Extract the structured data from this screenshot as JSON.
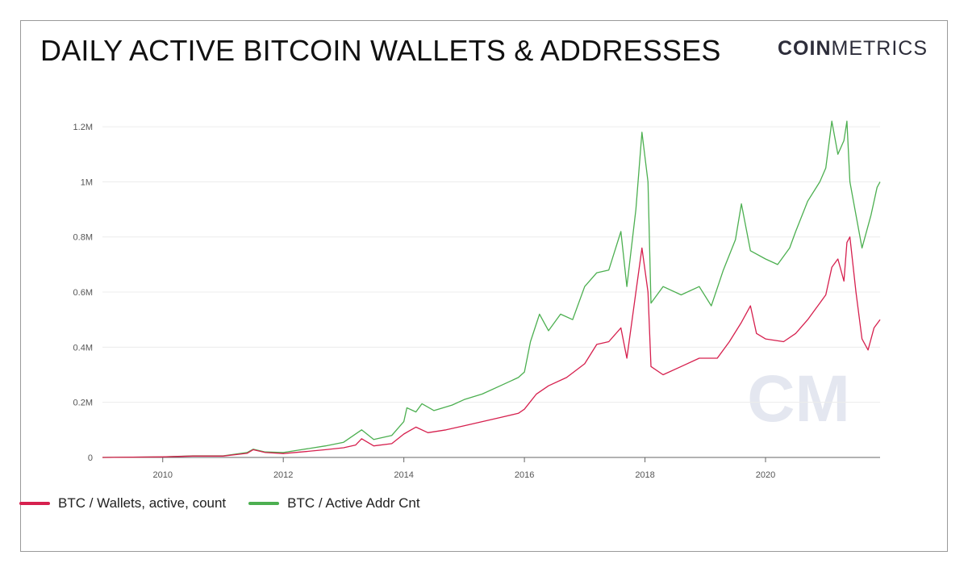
{
  "header": {
    "title": "DAILY ACTIVE BITCOIN WALLETS & ADDRESSES",
    "brand_bold": "COIN",
    "brand_light": "METRICS"
  },
  "watermark": {
    "text": "CM"
  },
  "colors": {
    "wallets": "#d6204e",
    "addresses": "#4caf50",
    "grid": "#ececec",
    "axis": "#555555"
  },
  "chart_data": {
    "type": "line",
    "title": "DAILY ACTIVE BITCOIN WALLETS & ADDRESSES",
    "xlabel": "",
    "ylabel": "",
    "xlim": [
      2009.0,
      2021.9
    ],
    "ylim": [
      0,
      1250000
    ],
    "x_ticks": [
      2010,
      2012,
      2014,
      2016,
      2018,
      2020
    ],
    "x_tick_labels": [
      "2010",
      "2012",
      "2014",
      "2016",
      "2018",
      "2020"
    ],
    "y_ticks": [
      0,
      200000,
      400000,
      600000,
      800000,
      1000000,
      1200000
    ],
    "y_tick_labels": [
      "0",
      "0.2M",
      "0.4M",
      "0.6M",
      "0.8M",
      "1M",
      "1.2M"
    ],
    "grid": true,
    "legend_position": "bottom-left",
    "series": [
      {
        "name": "BTC / Wallets, active, count",
        "color": "#d6204e",
        "points": [
          [
            2009.0,
            0
          ],
          [
            2010.0,
            2000
          ],
          [
            2010.5,
            5000
          ],
          [
            2011.0,
            5000
          ],
          [
            2011.4,
            15000
          ],
          [
            2011.5,
            28000
          ],
          [
            2011.7,
            18000
          ],
          [
            2012.0,
            14000
          ],
          [
            2012.3,
            20000
          ],
          [
            2012.7,
            28000
          ],
          [
            2013.0,
            35000
          ],
          [
            2013.2,
            45000
          ],
          [
            2013.3,
            68000
          ],
          [
            2013.5,
            42000
          ],
          [
            2013.8,
            50000
          ],
          [
            2014.0,
            85000
          ],
          [
            2014.2,
            110000
          ],
          [
            2014.4,
            90000
          ],
          [
            2014.7,
            100000
          ],
          [
            2015.0,
            115000
          ],
          [
            2015.3,
            130000
          ],
          [
            2015.6,
            145000
          ],
          [
            2015.9,
            160000
          ],
          [
            2016.0,
            175000
          ],
          [
            2016.2,
            230000
          ],
          [
            2016.4,
            260000
          ],
          [
            2016.7,
            290000
          ],
          [
            2017.0,
            340000
          ],
          [
            2017.2,
            410000
          ],
          [
            2017.4,
            420000
          ],
          [
            2017.6,
            470000
          ],
          [
            2017.7,
            360000
          ],
          [
            2017.85,
            600000
          ],
          [
            2017.95,
            760000
          ],
          [
            2018.05,
            600000
          ],
          [
            2018.1,
            330000
          ],
          [
            2018.3,
            300000
          ],
          [
            2018.6,
            330000
          ],
          [
            2018.9,
            360000
          ],
          [
            2019.2,
            360000
          ],
          [
            2019.4,
            420000
          ],
          [
            2019.6,
            490000
          ],
          [
            2019.75,
            550000
          ],
          [
            2019.85,
            450000
          ],
          [
            2020.0,
            430000
          ],
          [
            2020.3,
            420000
          ],
          [
            2020.5,
            450000
          ],
          [
            2020.7,
            500000
          ],
          [
            2020.9,
            560000
          ],
          [
            2021.0,
            590000
          ],
          [
            2021.1,
            690000
          ],
          [
            2021.2,
            720000
          ],
          [
            2021.3,
            640000
          ],
          [
            2021.35,
            780000
          ],
          [
            2021.4,
            800000
          ],
          [
            2021.5,
            600000
          ],
          [
            2021.6,
            430000
          ],
          [
            2021.7,
            390000
          ],
          [
            2021.8,
            470000
          ],
          [
            2021.9,
            500000
          ]
        ]
      },
      {
        "name": "BTC / Active Addr Cnt",
        "color": "#4caf50",
        "points": [
          [
            2009.0,
            0
          ],
          [
            2010.0,
            2000
          ],
          [
            2010.5,
            6000
          ],
          [
            2011.0,
            6000
          ],
          [
            2011.4,
            18000
          ],
          [
            2011.5,
            30000
          ],
          [
            2011.7,
            20000
          ],
          [
            2012.0,
            18000
          ],
          [
            2012.3,
            28000
          ],
          [
            2012.7,
            42000
          ],
          [
            2013.0,
            55000
          ],
          [
            2013.3,
            100000
          ],
          [
            2013.5,
            65000
          ],
          [
            2013.8,
            80000
          ],
          [
            2014.0,
            130000
          ],
          [
            2014.05,
            180000
          ],
          [
            2014.2,
            165000
          ],
          [
            2014.3,
            195000
          ],
          [
            2014.5,
            170000
          ],
          [
            2014.8,
            190000
          ],
          [
            2015.0,
            210000
          ],
          [
            2015.3,
            230000
          ],
          [
            2015.6,
            260000
          ],
          [
            2015.9,
            290000
          ],
          [
            2016.0,
            310000
          ],
          [
            2016.1,
            420000
          ],
          [
            2016.25,
            520000
          ],
          [
            2016.4,
            460000
          ],
          [
            2016.6,
            520000
          ],
          [
            2016.8,
            500000
          ],
          [
            2017.0,
            620000
          ],
          [
            2017.2,
            670000
          ],
          [
            2017.4,
            680000
          ],
          [
            2017.6,
            820000
          ],
          [
            2017.7,
            620000
          ],
          [
            2017.85,
            900000
          ],
          [
            2017.95,
            1180000
          ],
          [
            2018.05,
            1000000
          ],
          [
            2018.1,
            560000
          ],
          [
            2018.3,
            620000
          ],
          [
            2018.6,
            590000
          ],
          [
            2018.9,
            620000
          ],
          [
            2019.1,
            550000
          ],
          [
            2019.3,
            680000
          ],
          [
            2019.5,
            790000
          ],
          [
            2019.6,
            920000
          ],
          [
            2019.75,
            750000
          ],
          [
            2020.0,
            720000
          ],
          [
            2020.2,
            700000
          ],
          [
            2020.4,
            760000
          ],
          [
            2020.5,
            820000
          ],
          [
            2020.7,
            930000
          ],
          [
            2020.9,
            1000000
          ],
          [
            2021.0,
            1050000
          ],
          [
            2021.1,
            1220000
          ],
          [
            2021.2,
            1100000
          ],
          [
            2021.3,
            1150000
          ],
          [
            2021.35,
            1220000
          ],
          [
            2021.4,
            1000000
          ],
          [
            2021.5,
            880000
          ],
          [
            2021.6,
            760000
          ],
          [
            2021.75,
            880000
          ],
          [
            2021.85,
            980000
          ],
          [
            2021.9,
            1000000
          ]
        ]
      }
    ]
  }
}
